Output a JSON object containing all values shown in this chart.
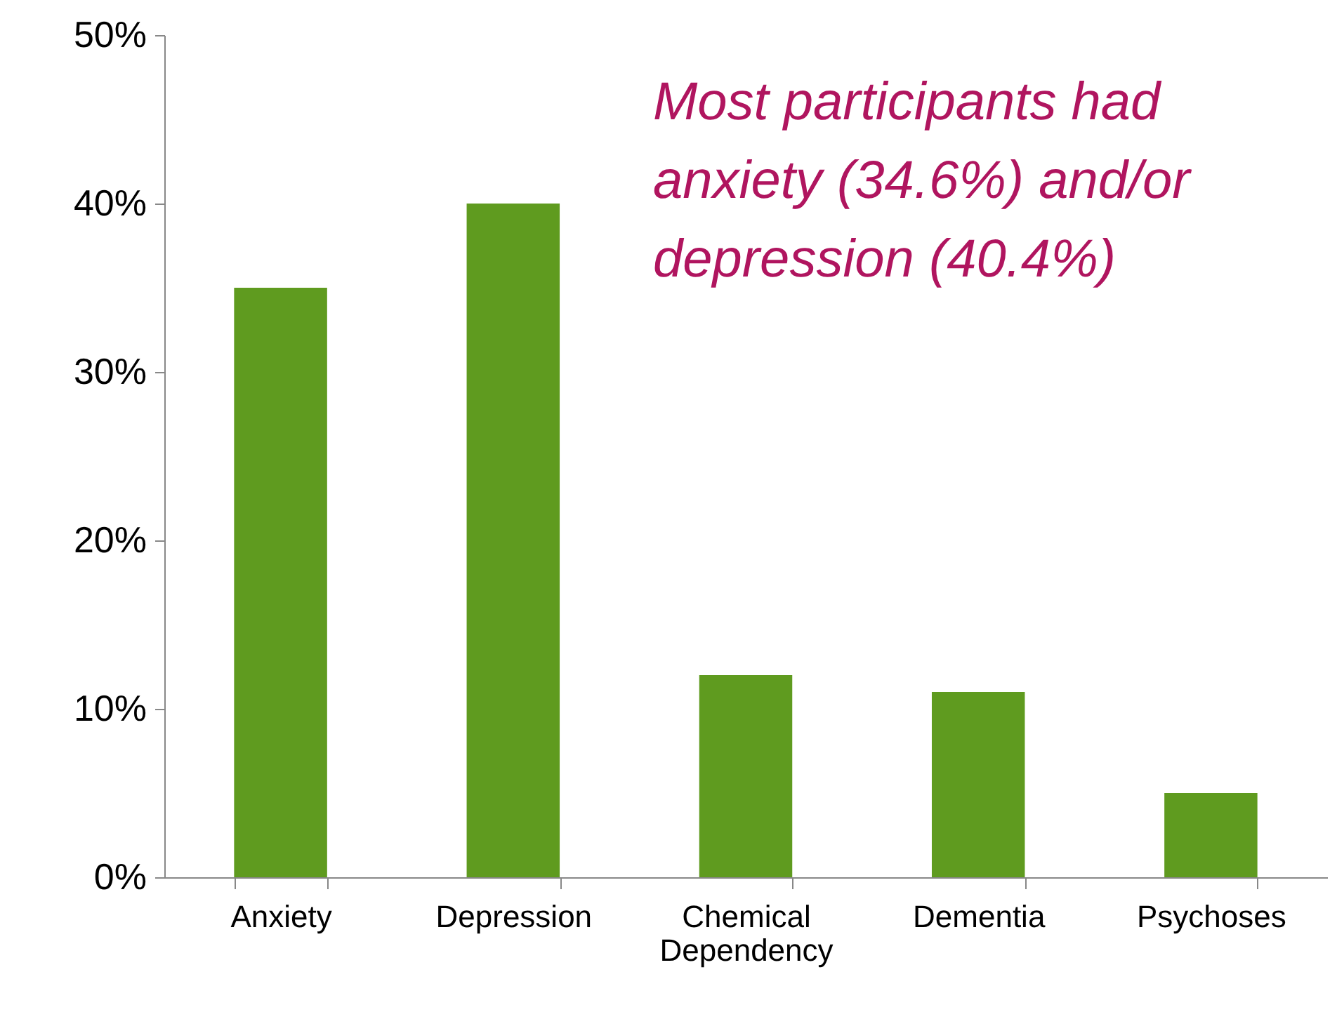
{
  "chart_data": {
    "type": "bar",
    "categories": [
      "Anxiety",
      "Depression",
      "Chemical Dependency",
      "Dementia",
      "Psychoses"
    ],
    "values": [
      35,
      40,
      12,
      11,
      5
    ],
    "color": "#5f9b1f",
    "ylim": [
      0,
      50
    ],
    "yticks": [
      {
        "value": 0,
        "label": "0%"
      },
      {
        "value": 10,
        "label": "10%"
      },
      {
        "value": 20,
        "label": "20%"
      },
      {
        "value": 30,
        "label": "30%"
      },
      {
        "value": 40,
        "label": "40%"
      },
      {
        "value": 50,
        "label": "50%"
      }
    ],
    "grid": false,
    "annotations": [
      "Most participants had anxiety (34.6%) and/or depression (40.4%)"
    ]
  }
}
